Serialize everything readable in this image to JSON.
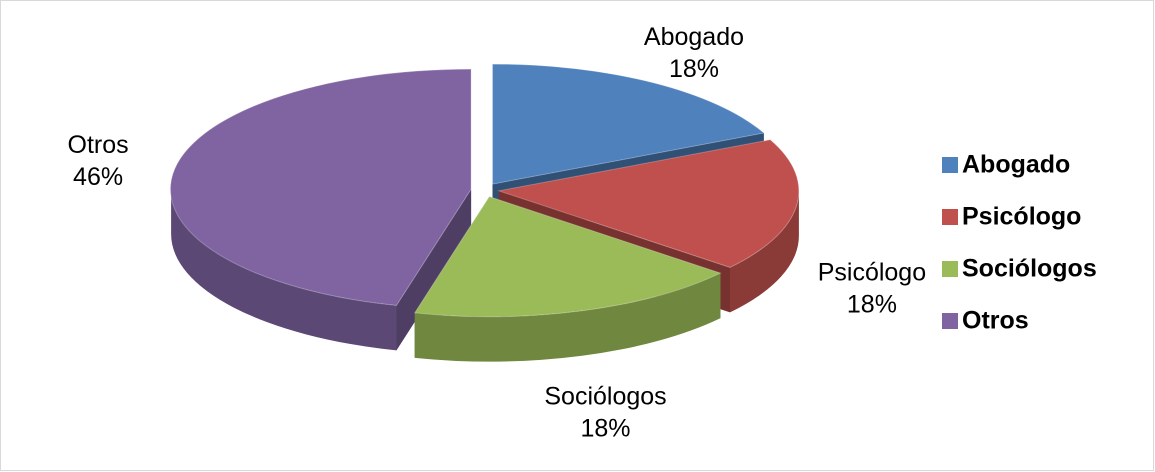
{
  "chart_data": {
    "type": "pie",
    "categories": [
      "Abogado",
      "Psicólogo",
      "Sociólogos",
      "Otros"
    ],
    "values": [
      18,
      18,
      18,
      46
    ],
    "value_labels": [
      "18%",
      "18%",
      "18%",
      "46%"
    ],
    "colors": [
      "#4f81bd",
      "#c0504d",
      "#9bbb59",
      "#8064a2"
    ],
    "legend": "right"
  }
}
